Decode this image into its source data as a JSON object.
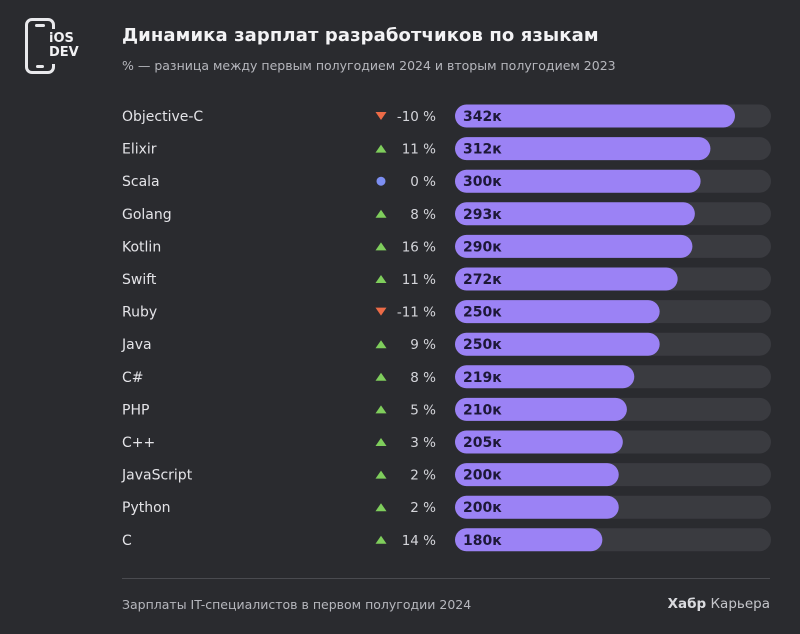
{
  "logo": {
    "text": "iOS\nDEV"
  },
  "header": {
    "title": "Динамика зарплат разработчиков по языкам",
    "subtitle": "% — разница между первым полугодием 2024 и вторым полугодием 2023"
  },
  "footer": {
    "note": "Зарплаты IT-специалистов в первом полугодии 2024",
    "brand_strong": "Хабр",
    "brand_rest": "Карьера"
  },
  "colors": {
    "background": "#2a2b2f",
    "bar": "#9b82f5",
    "track": "#3a3b40",
    "up": "#7fce5c",
    "down": "#ec6b47",
    "flat": "#7c8ef2"
  },
  "chart_data": {
    "type": "bar",
    "orientation": "horizontal",
    "categories": [
      "Objective-C",
      "Elixir",
      "Scala",
      "Golang",
      "Kotlin",
      "Swift",
      "Ruby",
      "Java",
      "C#",
      "PHP",
      "C++",
      "JavaScript",
      "Python",
      "C"
    ],
    "values": [
      342,
      312,
      300,
      293,
      290,
      272,
      250,
      250,
      219,
      210,
      205,
      200,
      200,
      180
    ],
    "value_labels": [
      "342к",
      "312к",
      "300к",
      "293к",
      "290к",
      "272к",
      "250к",
      "250к",
      "219к",
      "210к",
      "205к",
      "200к",
      "200к",
      "180к"
    ],
    "change": [
      -10,
      11,
      0,
      8,
      16,
      11,
      -11,
      9,
      8,
      5,
      3,
      2,
      2,
      14
    ],
    "change_labels": [
      "-10 %",
      "11 %",
      "0 %",
      "8 %",
      "16 %",
      "11 %",
      "-11 %",
      "9 %",
      "8 %",
      "5 %",
      "3 %",
      "2 %",
      "2 %",
      "14 %"
    ],
    "change_direction": [
      "down",
      "up",
      "flat",
      "up",
      "up",
      "up",
      "down",
      "up",
      "up",
      "up",
      "up",
      "up",
      "up",
      "up"
    ],
    "xlim": [
      0,
      386
    ],
    "grid": false,
    "legend": false
  }
}
